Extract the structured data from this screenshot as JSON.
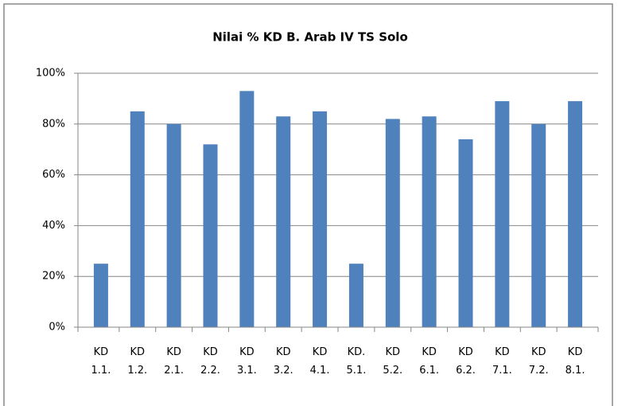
{
  "chart_data": {
    "type": "bar",
    "title": "Nilai % KD B. Arab IV TS Solo",
    "categories": [
      "KD 1.1.",
      "KD 1.2.",
      "KD 2.1.",
      "KD 2.2.",
      "KD 3.1.",
      "KD 3.2.",
      "KD 4.1.",
      "KD. 5.1.",
      "KD 5.2.",
      "KD 6.1.",
      "KD 6.2.",
      "KD 7.1.",
      "KD 7.2.",
      "KD 8.1."
    ],
    "values": [
      25,
      85,
      80,
      72,
      93,
      83,
      85,
      25,
      82,
      83,
      74,
      89,
      80,
      89
    ],
    "color": "#4f81bd",
    "ylim": [
      0,
      100
    ],
    "yticks": [
      {
        "value": 0,
        "label": "0%"
      },
      {
        "value": 20,
        "label": "20%"
      },
      {
        "value": 40,
        "label": "40%"
      },
      {
        "value": 60,
        "label": "60%"
      },
      {
        "value": 80,
        "label": "80%"
      },
      {
        "value": 100,
        "label": "100%"
      }
    ],
    "grid": true
  }
}
